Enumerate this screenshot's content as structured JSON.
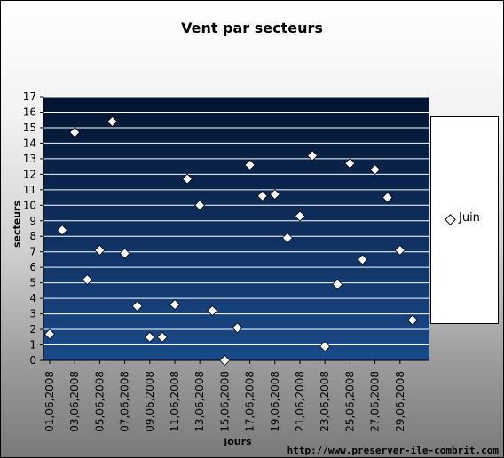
{
  "chart_data": {
    "type": "scatter",
    "title": "Vent par secteurs",
    "xlabel": "jours",
    "ylabel": "secteurs",
    "ylim": [
      0,
      17
    ],
    "y_ticks": [
      0,
      1,
      2,
      3,
      4,
      5,
      6,
      7,
      8,
      9,
      10,
      11,
      12,
      13,
      14,
      15,
      16,
      17
    ],
    "x_tick_labels": [
      "01,06,2008",
      "03,06,2008",
      "05,06,2008",
      "07,06,2008",
      "09,06,2008",
      "11,06,2008",
      "13,06,2008",
      "15,06,2008",
      "17,06,2008",
      "19,06,2008",
      "21,06,2008",
      "23,06,2008",
      "25,06,2008",
      "27,06,2008",
      "29,06,2008"
    ],
    "grid": "horizontal",
    "legend_position": "right",
    "series": [
      {
        "name": "Juin",
        "marker": "diamond",
        "x": [
          "01,06,2008",
          "02,06,2008",
          "03,06,2008",
          "04,06,2008",
          "05,06,2008",
          "06,06,2008",
          "07,06,2008",
          "08,06,2008",
          "09,06,2008",
          "10,06,2008",
          "11,06,2008",
          "12,06,2008",
          "13,06,2008",
          "14,06,2008",
          "15,06,2008",
          "16,06,2008",
          "17,06,2008",
          "18,06,2008",
          "19,06,2008",
          "20,06,2008",
          "21,06,2008",
          "22,06,2008",
          "23,06,2008",
          "24,06,2008",
          "25,06,2008",
          "26,06,2008",
          "27,06,2008",
          "28,06,2008",
          "29,06,2008",
          "30,06,2008"
        ],
        "y": [
          1.7,
          8.4,
          14.7,
          5.2,
          7.1,
          15.4,
          6.9,
          3.5,
          1.5,
          1.5,
          3.6,
          11.7,
          10.0,
          3.2,
          0.0,
          2.1,
          12.6,
          10.6,
          10.7,
          7.9,
          9.3,
          13.2,
          0.9,
          4.9,
          12.7,
          6.5,
          12.3,
          10.5,
          7.1,
          2.6
        ]
      }
    ]
  },
  "watermark": "http://www.preserver-ile-combrit.com",
  "colors": {
    "plot_top": "#031430",
    "plot_bottom": "#1a4a8a",
    "gridline": "#ffffff",
    "marker_fill": "#ffffff"
  }
}
